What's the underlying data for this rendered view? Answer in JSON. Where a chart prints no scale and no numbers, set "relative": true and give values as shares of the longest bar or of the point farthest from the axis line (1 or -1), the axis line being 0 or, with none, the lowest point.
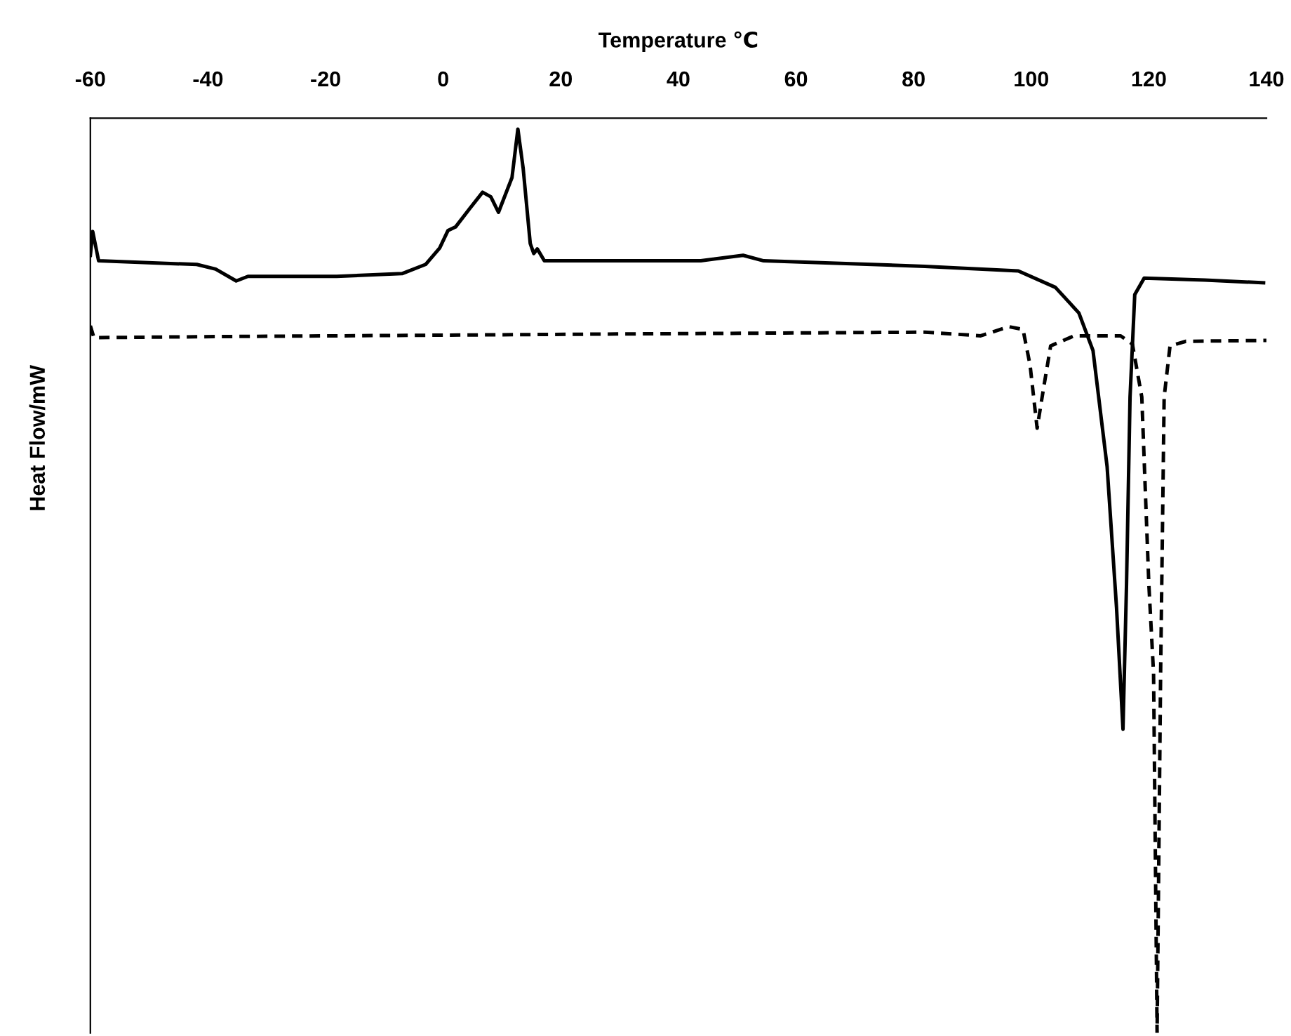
{
  "chart_data": {
    "type": "line",
    "xlabel": "Temperature ℃",
    "ylabel": "Heat Flow/mW",
    "relative": true,
    "xlim": [
      -60,
      140
    ],
    "xticks": [
      -60,
      -40,
      -20,
      0,
      20,
      40,
      60,
      80,
      100,
      120,
      140
    ],
    "grid": false,
    "marker": "none",
    "series": [
      {
        "color": "#000000",
        "line_style": "solid",
        "x": [
          -60,
          -59.6,
          -58.6,
          -41.9,
          -38.7,
          -35.2,
          -33.2,
          -18.1,
          -7.0,
          -3.0,
          -0.6,
          0.8,
          2.1,
          4.5,
          6.7,
          8.1,
          9.4,
          11.7,
          12.7,
          13.6,
          14.8,
          15.4,
          16.0,
          17.2,
          29.5,
          43.8,
          51,
          54.5,
          81.9,
          97.8,
          104.1,
          108.1,
          110.5,
          112.9,
          114.5,
          115.6,
          116.2,
          116.8,
          117.6,
          119.2,
          129.5,
          139.5
        ],
        "values": [
          -0.15,
          -0.124,
          -0.156,
          -0.16,
          -0.165,
          -0.178,
          -0.173,
          -0.173,
          -0.17,
          -0.16,
          -0.142,
          -0.123,
          -0.119,
          -0.099,
          -0.081,
          -0.086,
          -0.103,
          -0.065,
          -0.012,
          -0.055,
          -0.137,
          -0.148,
          -0.143,
          -0.156,
          -0.156,
          -0.156,
          -0.15,
          -0.156,
          -0.162,
          -0.167,
          -0.185,
          -0.213,
          -0.254,
          -0.381,
          -0.535,
          -0.668,
          -0.51,
          -0.305,
          -0.193,
          -0.175,
          -0.177,
          -0.18
        ]
      },
      {
        "color": "#000000",
        "line_style": "dashed",
        "x": [
          -60,
          -59.4,
          -41.9,
          29.5,
          81.9,
          91.4,
          96.2,
          98.6,
          99.8,
          101,
          102.1,
          103.3,
          107.3,
          115.2,
          117.2,
          118.8,
          120,
          120.8,
          121.4,
          122,
          122.6,
          123.6,
          126.3,
          140
        ],
        "values": [
          -0.227,
          -0.24,
          -0.239,
          -0.236,
          -0.234,
          -0.238,
          -0.228,
          -0.231,
          -0.27,
          -0.339,
          -0.295,
          -0.249,
          -0.238,
          -0.238,
          -0.247,
          -0.305,
          -0.51,
          -0.607,
          -1.0,
          -0.607,
          -0.305,
          -0.249,
          -0.244,
          -0.243
        ]
      }
    ]
  }
}
